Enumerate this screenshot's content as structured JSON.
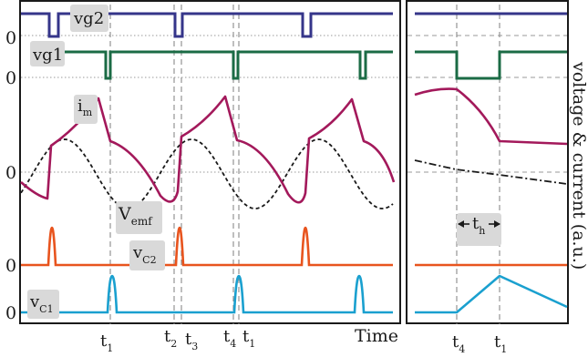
{
  "chart_data": {
    "type": "line",
    "xlabel": "Time",
    "ylabel": "voltage & current (a.u.)",
    "zero_label": "0",
    "colors": {
      "vg2": "#35358a",
      "vg1": "#1b6b45",
      "im": "#a3195b",
      "vemf": "#1a1a1a",
      "vc2": "#e8541e",
      "vc1": "#1aa0cf"
    },
    "signal_labels": {
      "vg2": "vg2",
      "vg1": "vg1",
      "im_base": "i",
      "im_sub": "m",
      "vemf_base": "V",
      "vemf_sub": "emf",
      "vc2_base": "v",
      "vc2_sub": "C2",
      "vc1_base": "v",
      "vc1_sub": "C1"
    },
    "left_time_markers": [
      {
        "base": "t",
        "sub": "1"
      },
      {
        "base": "t",
        "sub": "2"
      },
      {
        "base": "t",
        "sub": "3"
      },
      {
        "base": "t",
        "sub": "4"
      },
      {
        "base": "t",
        "sub": "1"
      }
    ],
    "right_time_markers": [
      {
        "base": "t",
        "sub": "4"
      },
      {
        "base": "t",
        "sub": "1"
      }
    ],
    "th_label": {
      "base": "t",
      "sub": "h"
    },
    "vg2_low_intervals": [
      [
        54,
        64
      ],
      [
        192,
        200
      ],
      [
        332,
        341
      ]
    ],
    "vg1_low_intervals": [
      [
        116,
        121
      ],
      [
        256,
        261
      ],
      [
        395,
        401
      ]
    ],
    "vc1_peak_times": [
      123,
      262,
      394
    ],
    "vc2_peak_times": [
      57,
      197,
      335
    ],
    "im_period": 139.5
  }
}
